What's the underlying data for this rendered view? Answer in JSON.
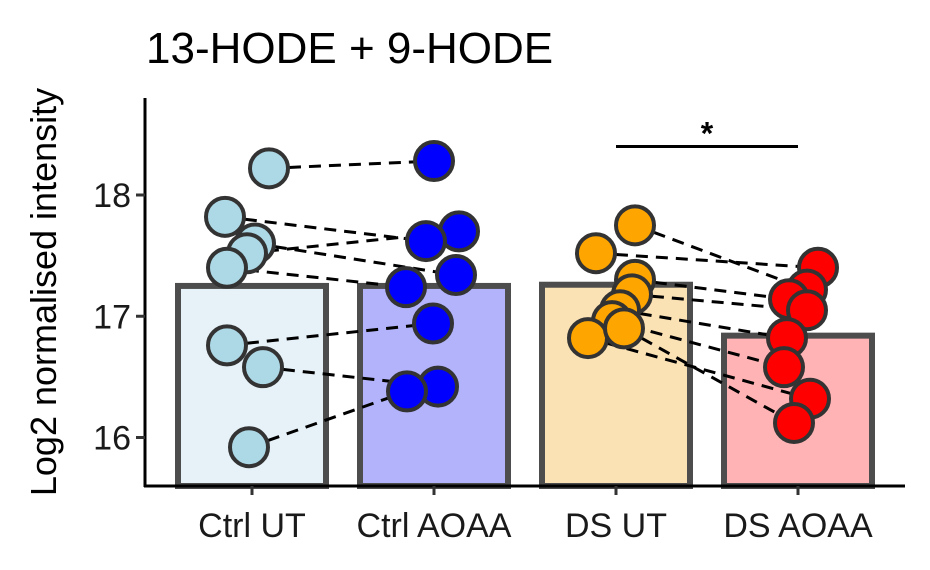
{
  "chart_data": {
    "type": "bar",
    "title": "13-HODE + 9-HODE",
    "xlabel": "",
    "ylabel": "Log2 normalised intensity",
    "ylim": [
      15.6,
      18.8
    ],
    "yticks": [
      16,
      17,
      18
    ],
    "ytick_labels": [
      "16",
      "17",
      "18"
    ],
    "categories": [
      "Ctrl UT",
      "Ctrl AOAA",
      "DS UT",
      "DS AOAA"
    ],
    "values": [
      17.25,
      17.25,
      17.26,
      16.84
    ],
    "bar_fill_colors": [
      "#e6f2f8",
      "#b3b3fb",
      "#fbe2b5",
      "#ffb3b5"
    ],
    "bar_outline_color": "#4d4d4d",
    "point_colors": [
      "#add8e6",
      "#0000ff",
      "#ffa500",
      "#ff0000"
    ],
    "point_outline_color": "#333333",
    "points": [
      [
        18.22,
        17.82,
        17.6,
        17.52,
        17.4,
        16.76,
        16.58,
        15.92
      ],
      [
        18.28,
        17.7,
        17.62,
        17.34,
        17.24,
        16.94,
        16.42,
        16.38
      ],
      [
        17.75,
        17.52,
        17.3,
        17.18,
        17.05,
        16.96,
        16.82,
        16.9
      ],
      [
        17.4,
        17.22,
        17.14,
        17.05,
        16.82,
        16.58,
        16.32,
        16.12
      ]
    ],
    "pairs": [
      [
        0,
        0
      ],
      [
        1,
        2
      ],
      [
        2,
        3
      ],
      [
        3,
        1
      ],
      [
        4,
        4
      ],
      [
        5,
        5
      ],
      [
        6,
        6
      ],
      [
        7,
        7
      ]
    ],
    "pairs_ds": [
      [
        0,
        1
      ],
      [
        1,
        0
      ],
      [
        2,
        2
      ],
      [
        3,
        3
      ],
      [
        4,
        4
      ],
      [
        5,
        5
      ],
      [
        6,
        6
      ],
      [
        7,
        7
      ]
    ],
    "significance": [
      {
        "from": "DS UT",
        "to": "DS AOAA",
        "label": "*",
        "y": 18.4
      }
    ],
    "grid": false
  }
}
